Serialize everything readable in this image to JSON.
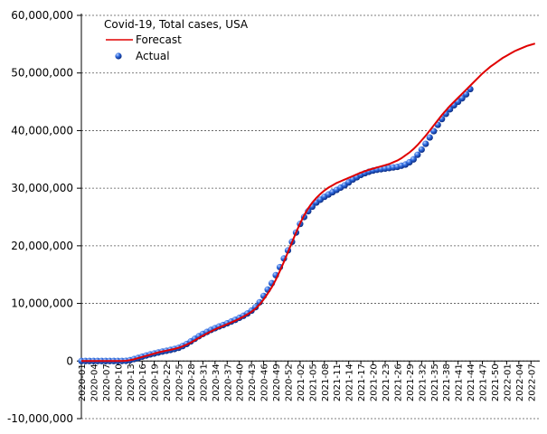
{
  "chart_data": {
    "type": "line",
    "title": "Covid-19, Total cases, USA",
    "categories": [
      "2020-01",
      null,
      null,
      "2020-04",
      null,
      null,
      "2020-07",
      null,
      null,
      "2020-10",
      null,
      null,
      "2020-13",
      null,
      null,
      "2020-16",
      null,
      null,
      "2020-19",
      null,
      null,
      "2020-22",
      null,
      null,
      "2020-25",
      null,
      null,
      "2020-28",
      null,
      null,
      "2020-31",
      null,
      null,
      "2020-34",
      null,
      null,
      "2020-37",
      null,
      null,
      "2020-40",
      null,
      null,
      "2020-43",
      null,
      null,
      "2020-46",
      null,
      null,
      "2020-49",
      null,
      null,
      "2020-52",
      null,
      null,
      "2021-02",
      null,
      null,
      "2021-05",
      null,
      null,
      "2021-08",
      null,
      null,
      "2021-11",
      null,
      null,
      "2021-14",
      null,
      null,
      "2021-17",
      null,
      null,
      "2021-20",
      null,
      null,
      "2021-23",
      null,
      null,
      "2021-26",
      null,
      null,
      "2021-29",
      null,
      null,
      "2021-32",
      null,
      null,
      "2021-35",
      null,
      null,
      "2021-38",
      null,
      null,
      "2021-41",
      null,
      null,
      "2021-44",
      null,
      null,
      "2021-47",
      null,
      null,
      "2021-50",
      null,
      null,
      "2022-01",
      null,
      null,
      "2022-04",
      null,
      null,
      "2022-07",
      null
    ],
    "series": [
      {
        "name": "Forecast",
        "color": "#e00000",
        "marker": "line",
        "values": [
          0,
          0,
          0,
          0,
          0,
          0,
          0,
          0,
          0,
          0,
          0,
          50000,
          150000,
          300000,
          500000,
          700000,
          900000,
          1100000,
          1300000,
          1500000,
          1650000,
          1800000,
          1950000,
          2100000,
          2300000,
          2550000,
          2850000,
          3200000,
          3600000,
          4000000,
          4400000,
          4800000,
          5150000,
          5500000,
          5800000,
          6100000,
          6400000,
          6700000,
          7000000,
          7350000,
          7700000,
          8100000,
          8550000,
          9100000,
          9800000,
          10700000,
          11700000,
          12800000,
          14100000,
          15600000,
          17200000,
          18900000,
          20600000,
          22300000,
          23900000,
          25300000,
          26500000,
          27500000,
          28300000,
          29000000,
          29600000,
          30100000,
          30500000,
          30900000,
          31200000,
          31500000,
          31800000,
          32100000,
          32400000,
          32700000,
          32950000,
          33200000,
          33400000,
          33600000,
          33800000,
          34000000,
          34200000,
          34500000,
          34800000,
          35200000,
          35700000,
          36200000,
          36800000,
          37500000,
          38300000,
          39100000,
          40000000,
          40900000,
          41800000,
          42700000,
          43500000,
          44300000,
          45000000,
          45700000,
          46400000,
          47100000,
          47800000,
          48500000,
          49200000,
          49900000,
          50500000,
          51100000,
          51600000,
          52100000,
          52600000,
          53000000,
          53400000,
          53800000,
          54100000,
          54400000,
          54700000,
          54900000,
          55100000
        ]
      },
      {
        "name": "Actual",
        "color": "#2255cc",
        "marker": "dot",
        "values": [
          0,
          0,
          0,
          0,
          0,
          0,
          0,
          0,
          0,
          1000,
          4000,
          30000,
          140000,
          340000,
          530000,
          760000,
          960000,
          1150000,
          1300000,
          1480000,
          1640000,
          1780000,
          1930000,
          2090000,
          2290000,
          2600000,
          2960000,
          3400000,
          3850000,
          4300000,
          4700000,
          5050000,
          5400000,
          5700000,
          6000000,
          6250000,
          6550000,
          6850000,
          7150000,
          7500000,
          7850000,
          8250000,
          8750000,
          9350000,
          10200000,
          11300000,
          12400000,
          13500000,
          14900000,
          16300000,
          17800000,
          19200000,
          20700000,
          22300000,
          23800000,
          25000000,
          26000000,
          26800000,
          27500000,
          28000000,
          28500000,
          28900000,
          29300000,
          29700000,
          30100000,
          30500000,
          31000000,
          31500000,
          31900000,
          32300000,
          32600000,
          32850000,
          33050000,
          33200000,
          33300000,
          33400000,
          33500000,
          33600000,
          33700000,
          33900000,
          34100000,
          34500000,
          35000000,
          35800000,
          36700000,
          37700000,
          38800000,
          39900000,
          41000000,
          42000000,
          42900000,
          43700000,
          44400000,
          45000000,
          45600000,
          46300000,
          47200000,
          null,
          null,
          null,
          null,
          null,
          null,
          null,
          null,
          null,
          null,
          null,
          null,
          null,
          null,
          null,
          null
        ]
      }
    ],
    "ylim": [
      -10000000,
      60000000
    ],
    "yticks": [
      {
        "value": -10000000,
        "label": "-10,000,000"
      },
      0,
      {
        "value": 10000000,
        "label": "10,000,000"
      },
      {
        "value": 20000000,
        "label": "20,000,000"
      },
      {
        "value": 30000000,
        "label": "30,000,000"
      },
      {
        "value": 40000000,
        "label": "40,000,000"
      },
      {
        "value": 50000000,
        "label": "50,000,000"
      },
      {
        "value": 60000000,
        "label": "60,000,000"
      }
    ],
    "grid": true,
    "legend": "top-left"
  }
}
